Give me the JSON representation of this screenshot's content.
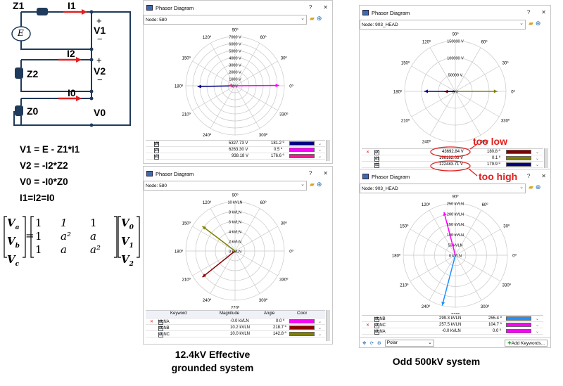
{
  "circuit": {
    "labels": {
      "z1": "Z1",
      "i1": "I1",
      "i2": "I2",
      "i0": "I0",
      "z2": "Z2",
      "z0": "Z0",
      "v1": "V1",
      "v2": "V2",
      "v0": "V0",
      "plus": "+",
      "minus": "−",
      "source": "E"
    }
  },
  "equations": [
    "V1 = E - Z1*I1",
    "V2 = -I2*Z2",
    "V0 = -I0*Z0",
    "I1=I2=I0"
  ],
  "matrix": {
    "lhs": [
      "V",
      "V",
      "V"
    ],
    "lhs_sub": [
      "a",
      "b",
      "c"
    ],
    "rows": [
      [
        "1",
        "1",
        "1"
      ],
      [
        "1",
        "a²",
        "a"
      ],
      [
        "1",
        "a",
        "a²"
      ]
    ],
    "rhs": [
      "V",
      "V",
      "V"
    ],
    "rhs_sub": [
      "0",
      "1",
      "2"
    ]
  },
  "common": {
    "app_title": "Phasor Diagram",
    "help": "?",
    "close": "✕"
  },
  "windows": [
    {
      "node": "Node: 580",
      "deg_labels": [
        "90º",
        "60º",
        "30º",
        "0º",
        "330º",
        "300º",
        "270º",
        "240º",
        "210º",
        "180º",
        "150º",
        "120º"
      ],
      "ring_labels": [
        "7000 V",
        "6000 V",
        "5000 V",
        "4000 V",
        "3000 V",
        "2000 V",
        "1000 V",
        "0 V"
      ],
      "rows": [
        {
          "label": "V0",
          "mag": "5327.73 V",
          "ang": "181.2 º",
          "color": "#000080"
        },
        {
          "label": "V1",
          "mag": "6263.30 V",
          "ang": "0.5 º",
          "color": "#ff00ff"
        },
        {
          "label": "V2",
          "mag": "938.18 V",
          "ang": "176.6 º",
          "color": "#ff1493"
        }
      ]
    },
    {
      "node": "Node: 903_HEAD",
      "deg_labels": [
        "90º",
        "60º",
        "30º",
        "0º",
        "330º",
        "300º",
        "270º",
        "240º",
        "210º",
        "180º",
        "150º",
        "120º"
      ],
      "ring_labels": [
        "150000 V",
        "100000 V",
        "50000 V",
        "0 V"
      ],
      "rows": [
        {
          "label": "V0",
          "mag": "43692.84 V",
          "ang": "180.8 º",
          "color": "#800000"
        },
        {
          "label": "V1",
          "mag": "166182.03 V",
          "ang": "0.1 º",
          "color": "#808000"
        },
        {
          "label": "V2",
          "mag": "122483.71 V",
          "ang": "179.9 º",
          "color": "#000080"
        }
      ]
    },
    {
      "node": "Node: 580",
      "deg_labels": [
        "90º",
        "60º",
        "30º",
        "0º",
        "330º",
        "300º",
        "270º",
        "240º",
        "210º",
        "180º",
        "150º",
        "120º"
      ],
      "ring_labels": [
        "10 kVLN",
        "8 kVLN",
        "6 kVLN",
        "4 kVLN",
        "2 kVLN",
        "0 kVLN"
      ],
      "headers": [
        "Keyword",
        "Magnitude",
        "Angle",
        "Color"
      ],
      "rows": [
        {
          "label": "VLNA",
          "mag": "-0.0 kVLN",
          "ang": "0.0 º",
          "color": "#ff00ff"
        },
        {
          "label": "VLNB",
          "mag": "10.2 kVLN",
          "ang": "218.7 º",
          "color": "#8b0000"
        },
        {
          "label": "VLNC",
          "mag": "10.0 kVLN",
          "ang": "142.8 º",
          "color": "#808000"
        }
      ]
    },
    {
      "node": "Node: 903_HEAD",
      "deg_labels": [
        "90º",
        "60º",
        "30º",
        "0º",
        "330º",
        "300º",
        "270º",
        "240º",
        "210º",
        "180º",
        "150º",
        "120º"
      ],
      "ring_labels": [
        "250 kVLN",
        "200 kVLN",
        "150 kVLN",
        "100 kVLN",
        "50 kVLN",
        "0 kVLN"
      ],
      "rows": [
        {
          "label": "VLNB",
          "mag": "299.3 kVLN",
          "ang": "255.4 º",
          "color": "#1e90ff"
        },
        {
          "label": "VLNC",
          "mag": "257.5 kVLN",
          "ang": "104.7 º",
          "color": "#ff00ff"
        },
        {
          "label": "VLNA",
          "mag": "-0.0 kVLN",
          "ang": "0.0 º",
          "color": "#ff00ff"
        }
      ],
      "footer": {
        "mode": "Polar",
        "add_keywords": "Add Keywords..."
      }
    }
  ],
  "annotations": {
    "too_low": "too low",
    "too_high": "too high"
  },
  "captions": {
    "effective": "12.4kV Effective grounded system",
    "odd": "Odd 500kV system"
  }
}
